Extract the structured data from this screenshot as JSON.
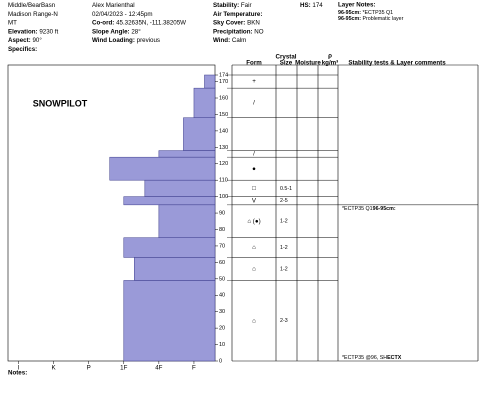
{
  "header": {
    "columns": [
      [
        {
          "text": "Middle/BearBasn"
        },
        {
          "text": "Madison Range-N"
        },
        {
          "text": "MT"
        },
        {
          "label": "Elevation:",
          "value": "9230 ft"
        },
        {
          "label": "Aspect:",
          "value": "90°"
        },
        {
          "label": "Specifics:"
        }
      ],
      [
        {
          "text": "Alex Marienthal"
        },
        {
          "text": "02/04/2023 - 12:45pm"
        },
        {
          "label": "Co-ord:",
          "value": "45.32635N, -111.38205W"
        },
        {
          "label": "Slope Angle:",
          "value": "28°"
        },
        {
          "label": "Wind Loading:",
          "value": "previous"
        }
      ],
      [
        {
          "label": "Stability:",
          "value": "Fair"
        },
        {
          "label": "Air Temperature:"
        },
        {
          "label": "Sky Cover:",
          "value": "BKN"
        },
        {
          "label": "Precipitation:",
          "value": "NO"
        },
        {
          "label": "Wind:",
          "value": "Calm"
        }
      ],
      [
        {
          "label": "HS:",
          "value": "174"
        }
      ]
    ],
    "layer_notes_title": "Layer Notes:",
    "layer_notes": [
      {
        "label": "96-95cm:",
        "value": "*ECTP35 Q1"
      },
      {
        "label": "96-95cm:",
        "value": "Problematic layer"
      }
    ]
  },
  "chart_data": {
    "type": "hardness-profile",
    "watermark": "SNOWPILOT",
    "color": "#9a9ad8",
    "ylim": [
      0,
      174
    ],
    "yticks": [
      0,
      10,
      20,
      30,
      40,
      50,
      60,
      70,
      80,
      90,
      100,
      110,
      120,
      130,
      140,
      150,
      160,
      170,
      174
    ],
    "xlim": [
      5.9,
      0
    ],
    "xticks": [
      {
        "value": 5.6,
        "label": "I"
      },
      {
        "value": 4.6,
        "label": "K"
      },
      {
        "value": 3.6,
        "label": "P"
      },
      {
        "value": 2.6,
        "label": "1F"
      },
      {
        "value": 1.6,
        "label": "4F"
      },
      {
        "value": 0.6,
        "label": "F"
      }
    ],
    "columns": {
      "crystal": "Crystal",
      "form": "Form",
      "size": "Size",
      "moisture": "Moisture",
      "rho": "ρ",
      "density": "kg/m³",
      "comments": "Stability tests & Layer comments"
    },
    "layers": [
      {
        "top": 174,
        "bottom": 166,
        "hardness": 0.3,
        "form": "+"
      },
      {
        "top": 166,
        "bottom": 148,
        "hardness": 0.6,
        "form": "/"
      },
      {
        "top": 148,
        "bottom": 128,
        "hardness": 0.9
      },
      {
        "top": 128,
        "bottom": 124,
        "hardness": 1.6,
        "form": "/"
      },
      {
        "top": 124,
        "bottom": 110,
        "hardness": 3.0,
        "form": "●"
      },
      {
        "top": 110,
        "bottom": 100,
        "hardness": 2.0,
        "form": "□",
        "size": "0.5-1"
      },
      {
        "top": 100,
        "bottom": 95,
        "hardness": 2.6,
        "form": "V",
        "size": "2-5"
      },
      {
        "top": 95,
        "bottom": 75,
        "hardness": 1.6,
        "form": "⌂ (●)",
        "size": "1-2",
        "comment": {
          "label": "96-95cm:",
          "text": "*ECTP35 Q1"
        }
      },
      {
        "top": 75,
        "bottom": 63,
        "hardness": 2.6,
        "form": "⌂",
        "size": "1-2"
      },
      {
        "top": 63,
        "bottom": 49,
        "hardness": 2.3,
        "form": "⌂",
        "size": "1-2"
      },
      {
        "top": 49,
        "bottom": 0,
        "hardness": 2.6,
        "form": "⌂",
        "size": "2-3",
        "test": {
          "label": "ECTX",
          "text": "*ECTP35 @96, SH"
        }
      }
    ],
    "notes": "Notes:"
  }
}
